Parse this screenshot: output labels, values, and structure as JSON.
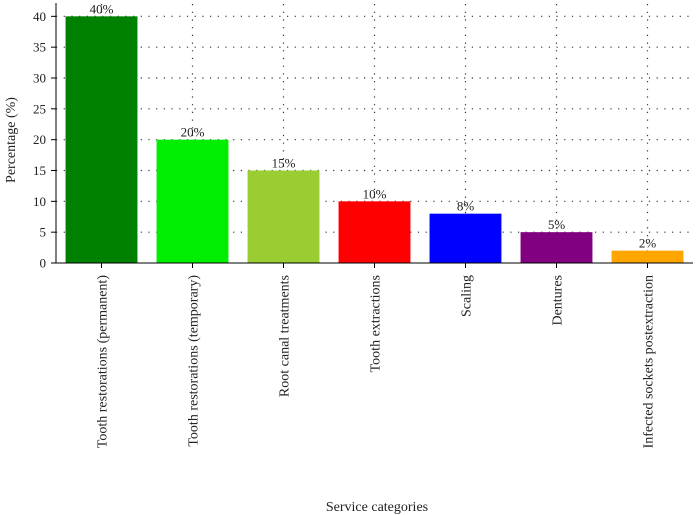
{
  "chart_data": {
    "type": "bar",
    "title": "",
    "xlabel": "Service categories",
    "ylabel": "Percentage (%)",
    "ylim": [
      0,
      42
    ],
    "yticks": [
      0,
      5,
      10,
      15,
      20,
      25,
      30,
      35,
      40
    ],
    "grid": true,
    "categories": [
      "Tooth restorations (permanent)",
      "Tooth restorations (temporary)",
      "Root canal treatments",
      "Tooth extractions",
      "Scaling",
      "Dentures",
      "Infected sockets postextraction"
    ],
    "values": [
      40,
      20,
      15,
      10,
      8,
      5,
      2
    ],
    "data_labels": [
      "40%",
      "20%",
      "15%",
      "10%",
      "8%",
      "5%",
      "2%"
    ],
    "colors": [
      "#008000",
      "#00ee00",
      "#9acd32",
      "#ff0000",
      "#0000ff",
      "#800080",
      "#ffa500"
    ]
  }
}
